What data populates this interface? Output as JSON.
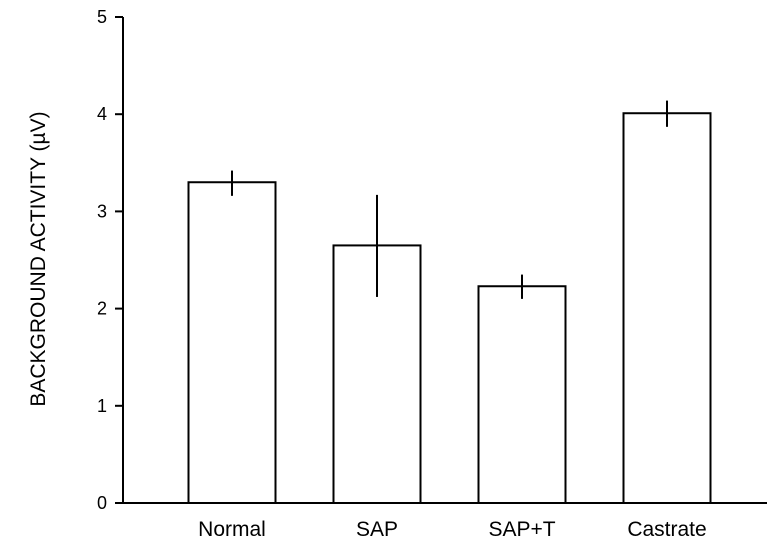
{
  "chart_data": {
    "type": "bar",
    "title": "",
    "xlabel": "",
    "ylabel": "BACKGROUND ACTIVITY (µV)",
    "categories": [
      "Normal",
      "SAP",
      "SAP+T",
      "Castrate"
    ],
    "values": [
      3.3,
      2.65,
      2.23,
      4.01
    ],
    "error_plus": [
      0.12,
      0.52,
      0.12,
      0.13
    ],
    "error_minus": [
      0.14,
      0.53,
      0.13,
      0.14
    ],
    "ylim": [
      0,
      5
    ],
    "yticks": [
      "0",
      "1",
      "2",
      "3",
      "4",
      "5"
    ],
    "grid": false,
    "legend": "none",
    "bar_fill": "#ffffff",
    "bar_stroke": "#000000"
  }
}
